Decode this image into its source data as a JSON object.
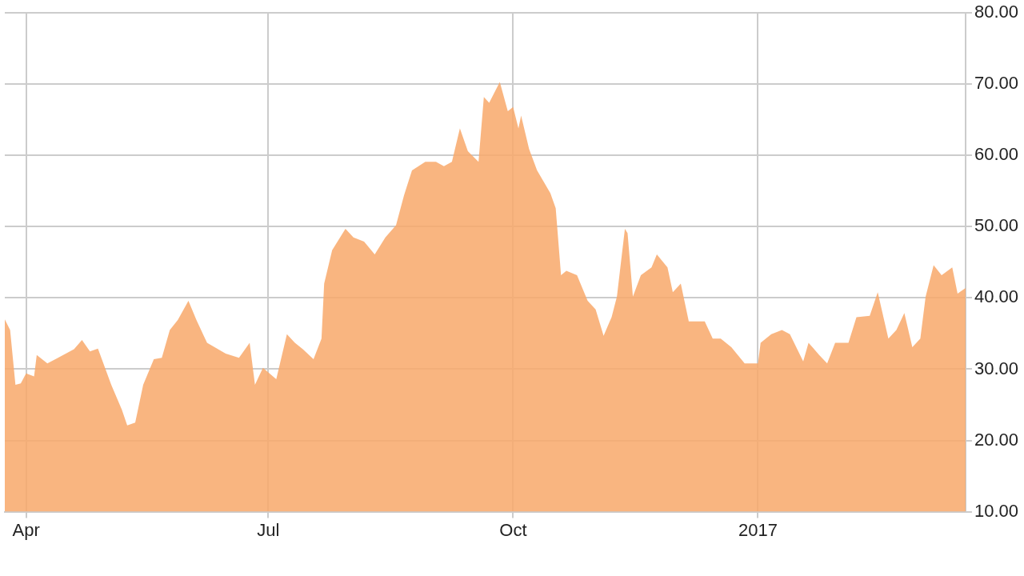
{
  "chart_data": {
    "type": "area",
    "xlim": [
      "2016-03-24",
      "2017-03-20"
    ],
    "xticks": [
      {
        "value": "2016-04-01",
        "label": "Apr"
      },
      {
        "value": "2016-07-01",
        "label": "Jul"
      },
      {
        "value": "2016-10-01",
        "label": "Oct"
      },
      {
        "value": "2017-01-01",
        "label": "2017"
      }
    ],
    "ylim": [
      10,
      80
    ],
    "yticks": [
      {
        "value": 10,
        "label": "10.00"
      },
      {
        "value": 20,
        "label": "20.00"
      },
      {
        "value": 30,
        "label": "30.00"
      },
      {
        "value": 40,
        "label": "40.00"
      },
      {
        "value": 50,
        "label": "50.00"
      },
      {
        "value": 60,
        "label": "60.00"
      },
      {
        "value": 70,
        "label": "70.00"
      },
      {
        "value": 80,
        "label": "80.00"
      }
    ],
    "grid": true,
    "legend": false,
    "marker": "none",
    "x": [
      "2016-03-24",
      "2016-03-26",
      "2016-03-28",
      "2016-03-30",
      "2016-04-01",
      "2016-04-04",
      "2016-04-05",
      "2016-04-09",
      "2016-04-13",
      "2016-04-19",
      "2016-04-22",
      "2016-04-25",
      "2016-04-28",
      "2016-05-03",
      "2016-05-07",
      "2016-05-09",
      "2016-05-12",
      "2016-05-15",
      "2016-05-19",
      "2016-05-22",
      "2016-05-25",
      "2016-05-28",
      "2016-06-01",
      "2016-06-04",
      "2016-06-08",
      "2016-06-15",
      "2016-06-20",
      "2016-06-24",
      "2016-06-26",
      "2016-06-29",
      "2016-07-04",
      "2016-07-08",
      "2016-07-11",
      "2016-07-14",
      "2016-07-18",
      "2016-07-21",
      "2016-07-22",
      "2016-07-25",
      "2016-07-30",
      "2016-08-02",
      "2016-08-06",
      "2016-08-10",
      "2016-08-14",
      "2016-08-18",
      "2016-08-21",
      "2016-08-24",
      "2016-08-29",
      "2016-09-02",
      "2016-09-05",
      "2016-09-08",
      "2016-09-11",
      "2016-09-14",
      "2016-09-18",
      "2016-09-20",
      "2016-09-22",
      "2016-09-26",
      "2016-09-29",
      "2016-10-01",
      "2016-10-03",
      "2016-10-04",
      "2016-10-07",
      "2016-10-10",
      "2016-10-15",
      "2016-10-17",
      "2016-10-19",
      "2016-10-21",
      "2016-10-25",
      "2016-10-29",
      "2016-11-01",
      "2016-11-04",
      "2016-11-07",
      "2016-11-09",
      "2016-11-12",
      "2016-11-13",
      "2016-11-15",
      "2016-11-18",
      "2016-11-22",
      "2016-11-24",
      "2016-11-28",
      "2016-11-30",
      "2016-12-03",
      "2016-12-06",
      "2016-12-12",
      "2016-12-15",
      "2016-12-18",
      "2016-12-22",
      "2016-12-27",
      "2017-01-01",
      "2017-01-02",
      "2017-01-06",
      "2017-01-10",
      "2017-01-13",
      "2017-01-18",
      "2017-01-20",
      "2017-01-24",
      "2017-01-27",
      "2017-01-30",
      "2017-02-04",
      "2017-02-07",
      "2017-02-12",
      "2017-02-15",
      "2017-02-19",
      "2017-02-22",
      "2017-02-25",
      "2017-02-28",
      "2017-03-03",
      "2017-03-05",
      "2017-03-08",
      "2017-03-11",
      "2017-03-15",
      "2017-03-17",
      "2017-03-20"
    ],
    "series": [
      {
        "color": "#f8a86a",
        "values": [
          37.0,
          35.5,
          27.8,
          28.0,
          29.4,
          29.0,
          32.0,
          30.8,
          31.6,
          32.8,
          34.1,
          32.5,
          32.9,
          27.8,
          24.3,
          22.1,
          22.5,
          27.8,
          31.4,
          31.6,
          35.5,
          36.9,
          39.6,
          36.9,
          33.7,
          32.2,
          31.6,
          33.7,
          27.8,
          30.2,
          28.6,
          34.9,
          33.7,
          32.8,
          31.4,
          34.3,
          42.0,
          46.7,
          49.7,
          48.5,
          47.9,
          46.1,
          48.5,
          50.2,
          54.4,
          57.9,
          59.1,
          59.1,
          58.5,
          59.1,
          63.8,
          60.6,
          59.1,
          68.2,
          67.4,
          70.3,
          66.2,
          66.8,
          63.8,
          65.6,
          60.9,
          57.9,
          54.7,
          52.6,
          43.2,
          43.8,
          43.2,
          39.6,
          38.4,
          34.7,
          37.3,
          40.2,
          49.7,
          49.1,
          40.2,
          43.2,
          44.3,
          46.1,
          44.3,
          40.8,
          42.0,
          36.7,
          36.7,
          34.3,
          34.3,
          33.1,
          30.8,
          30.8,
          33.7,
          34.9,
          35.5,
          34.9,
          31.1,
          33.7,
          32.0,
          30.8,
          33.7,
          33.7,
          37.3,
          37.5,
          40.8,
          34.3,
          35.5,
          37.9,
          33.1,
          34.3,
          40.2,
          44.6,
          43.2,
          44.3,
          40.6,
          41.4
        ]
      }
    ]
  }
}
